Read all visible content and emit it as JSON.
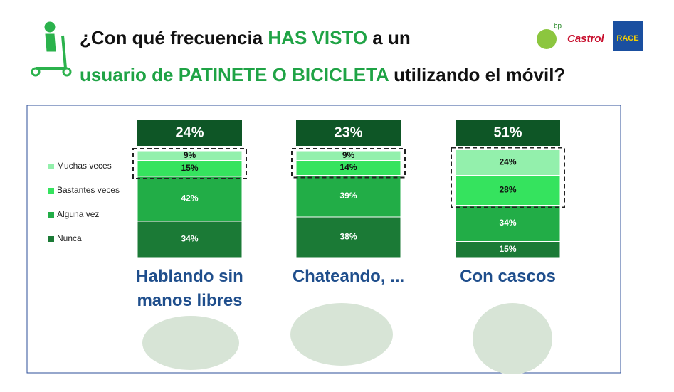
{
  "title_lines": [
    [
      {
        "text": "¿Con qué frecuencia ",
        "color": "#111111"
      },
      {
        "text": "HAS VISTO",
        "color": "#1fa345"
      },
      {
        "text": " a un",
        "color": "#111111"
      }
    ],
    [
      {
        "text": "usuario de PATINETE O BICICLETA",
        "color": "#1fa345"
      },
      {
        "text": " utilizando el móvil?",
        "color": "#111111"
      }
    ]
  ],
  "logos": [
    "bp",
    "Castrol",
    "RACE"
  ],
  "chart_data": {
    "type": "stacked_bar",
    "categories": [
      "Hablando sin manos libres",
      "Chateando, ...",
      "Con cascos"
    ],
    "series": [
      {
        "name": "Nunca",
        "color": "#1b7a36",
        "label_color": "#ffffff",
        "values": [
          34,
          38,
          15
        ],
        "value_labels": [
          "34%",
          "38%",
          "15%"
        ]
      },
      {
        "name": "Alguna vez",
        "color": "#22ad47",
        "label_color": "#ffffff",
        "values": [
          42,
          39,
          34
        ],
        "value_labels": [
          "42%",
          "39%",
          "34%"
        ]
      },
      {
        "name": "Bastantes veces",
        "color": "#35e35e",
        "label_color": "#111111",
        "values": [
          15,
          14,
          28
        ],
        "value_labels": [
          "15%",
          "14%",
          "28%"
        ]
      },
      {
        "name": "Muchas veces",
        "color": "#93f0ac",
        "label_color": "#111111",
        "values": [
          9,
          9,
          24
        ],
        "value_labels": [
          "9%",
          "9%",
          "24%"
        ]
      }
    ],
    "totals": {
      "color": "#0e5626",
      "values": [
        24,
        23,
        51
      ],
      "value_labels": [
        "24%",
        "23%",
        "51%"
      ]
    }
  }
}
